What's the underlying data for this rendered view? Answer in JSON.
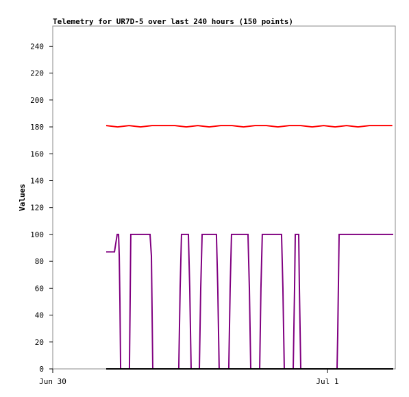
{
  "chart_data": {
    "type": "line",
    "title": "Telemetry for UR7D-5 over last 240 hours (150 points)",
    "y_label": "Values",
    "xlim": [
      0,
      29.93
    ],
    "xticks": [
      {
        "value": 0,
        "label": "Jun 30"
      },
      {
        "value": 24,
        "label": "Jul 1"
      }
    ],
    "ylim": [
      0,
      255
    ],
    "yticks": [
      0,
      20,
      40,
      60,
      80,
      100,
      120,
      140,
      160,
      180,
      200,
      220,
      240
    ],
    "series": [
      {
        "color": "#ff0000",
        "x": [
          4.67,
          5.67,
          6.67,
          7.67,
          8.67,
          9.67,
          10.67,
          11.67,
          12.67,
          13.67,
          14.67,
          15.67,
          16.67,
          17.67,
          18.67,
          19.67,
          20.67,
          21.67,
          22.67,
          23.67,
          24.67,
          25.67,
          26.67,
          27.67,
          28.67,
          29.67
        ],
        "values": [
          181,
          180,
          181,
          180,
          181,
          181,
          181,
          180,
          181,
          180,
          181,
          181,
          180,
          181,
          181,
          180,
          181,
          181,
          180,
          181,
          180,
          181,
          180,
          181,
          181,
          181
        ]
      },
      {
        "color": "#800080",
        "x": [
          4.67,
          5.39,
          5.63,
          5.75,
          5.81,
          5.87,
          5.93,
          6.7,
          6.76,
          6.82,
          8.5,
          8.62,
          8.74,
          11.01,
          11.13,
          11.25,
          11.85,
          11.97,
          12.09,
          12.81,
          12.93,
          13.05,
          14.3,
          14.42,
          14.54,
          15.38,
          15.5,
          15.62,
          17.06,
          17.18,
          17.3,
          18.08,
          18.19,
          18.31,
          19.99,
          20.11,
          20.23,
          21.01,
          21.13,
          21.19,
          21.49,
          21.55,
          21.67,
          24.84,
          24.9,
          25.02,
          29.75
        ],
        "values": [
          87,
          87,
          100,
          100,
          84,
          50,
          0,
          0,
          50,
          100,
          100,
          84,
          0,
          0,
          60,
          100,
          100,
          60,
          0,
          0,
          60,
          100,
          100,
          60,
          0,
          0,
          60,
          100,
          100,
          60,
          0,
          0,
          60,
          100,
          100,
          60,
          0,
          0,
          60,
          100,
          100,
          60,
          0,
          0,
          25,
          100,
          100
        ]
      },
      {
        "color": "#000000",
        "x": [
          4.67,
          29.75
        ],
        "values": [
          0,
          0
        ]
      }
    ]
  }
}
